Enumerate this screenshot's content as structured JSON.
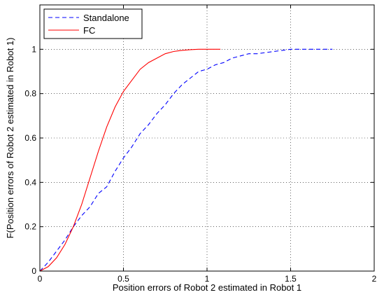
{
  "chart_data": {
    "type": "line",
    "title": "",
    "xlabel": "Position errors of Robot 2 estimated in Robot 1",
    "ylabel": "F(Position errors of Robot 2 estimated in Robot 1)",
    "xlim": [
      0,
      2
    ],
    "ylim": [
      0,
      1.2
    ],
    "xticks": [
      0,
      0.5,
      1,
      1.5,
      2
    ],
    "xtick_labels": [
      "0",
      "0.5",
      "1",
      "1.5",
      "2"
    ],
    "yticks": [
      0,
      0.2,
      0.4,
      0.6,
      0.8,
      1
    ],
    "ytick_labels": [
      "0",
      "0.2",
      "0.4",
      "0.6",
      "0.8",
      "1"
    ],
    "grid": true,
    "legend_position": "top-left",
    "series": [
      {
        "name": "Standalone",
        "color": "#0000ff",
        "dash": "dashed",
        "x": [
          0,
          0.05,
          0.1,
          0.15,
          0.2,
          0.25,
          0.3,
          0.35,
          0.4,
          0.45,
          0.5,
          0.55,
          0.6,
          0.65,
          0.7,
          0.75,
          0.8,
          0.85,
          0.9,
          0.95,
          1.0,
          1.05,
          1.1,
          1.15,
          1.2,
          1.25,
          1.3,
          1.35,
          1.4,
          1.45,
          1.5,
          1.55,
          1.6,
          1.65,
          1.7,
          1.75
        ],
        "y": [
          0,
          0.04,
          0.09,
          0.14,
          0.2,
          0.25,
          0.29,
          0.35,
          0.38,
          0.45,
          0.51,
          0.56,
          0.62,
          0.66,
          0.71,
          0.75,
          0.8,
          0.84,
          0.87,
          0.9,
          0.91,
          0.93,
          0.94,
          0.96,
          0.97,
          0.98,
          0.98,
          0.985,
          0.99,
          0.995,
          1.0,
          1.0,
          1.0,
          1.0,
          1.0,
          1.0
        ]
      },
      {
        "name": "FC",
        "color": "#ff0000",
        "dash": "solid",
        "x": [
          0,
          0.05,
          0.1,
          0.15,
          0.2,
          0.25,
          0.3,
          0.35,
          0.4,
          0.45,
          0.5,
          0.55,
          0.6,
          0.65,
          0.7,
          0.75,
          0.8,
          0.85,
          0.9,
          0.95,
          1.0,
          1.05,
          1.08
        ],
        "y": [
          0,
          0.02,
          0.06,
          0.12,
          0.2,
          0.3,
          0.42,
          0.54,
          0.65,
          0.74,
          0.81,
          0.86,
          0.91,
          0.94,
          0.96,
          0.98,
          0.99,
          0.995,
          0.998,
          1.0,
          1.0,
          1.0,
          1.0
        ]
      }
    ]
  }
}
